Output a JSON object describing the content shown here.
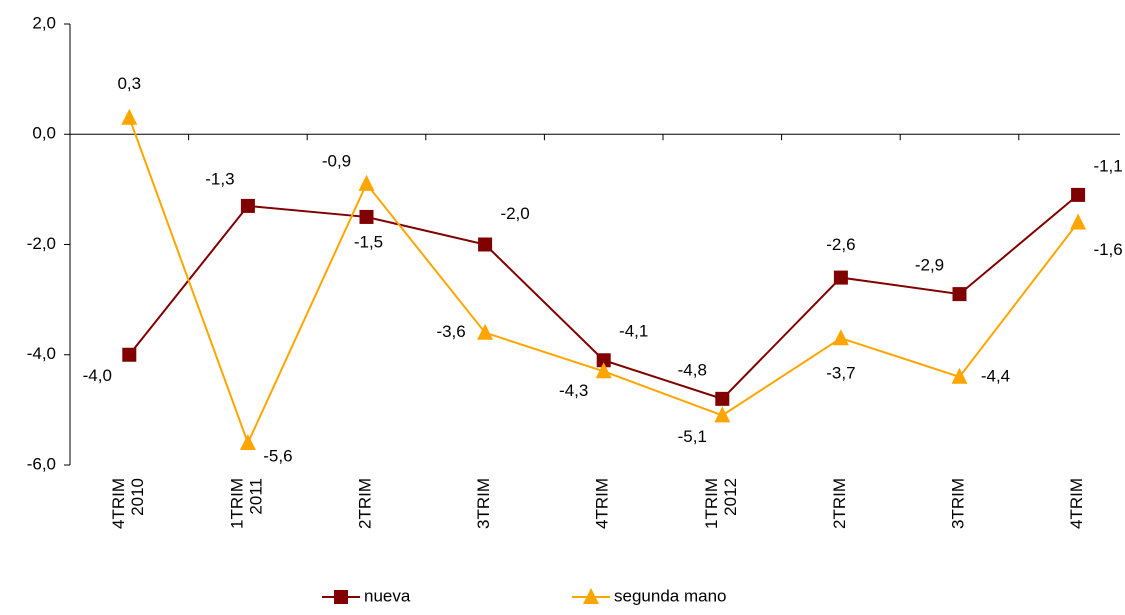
{
  "chart_data": {
    "type": "line",
    "categories": [
      "4TRIM 2010",
      "1TRIM 2011",
      "2TRIM",
      "3TRIM",
      "4TRIM",
      "1TRIM 2012",
      "2TRIM",
      "3TRIM",
      "4TRIM"
    ],
    "series": [
      {
        "name": "nueva",
        "color": "#800000",
        "marker": "square",
        "values": [
          -4.0,
          -1.3,
          -1.5,
          -2.0,
          -4.1,
          -4.8,
          -2.6,
          -2.9,
          -1.1
        ],
        "value_labels": [
          "-4,0",
          "-1,3",
          "-1,5",
          "-2,0",
          "-4,1",
          "-4,8",
          "-2,6",
          "-2,9",
          "-1,1"
        ]
      },
      {
        "name": "segunda mano",
        "color": "#FFA500",
        "marker": "triangle",
        "values": [
          0.3,
          -5.6,
          -0.9,
          -3.6,
          -4.3,
          -5.1,
          -3.7,
          -4.4,
          -1.6
        ],
        "value_labels": [
          "0,3",
          "-5,6",
          "-0,9",
          "-3,6",
          "-4,3",
          "-5,1",
          "-3,7",
          "-4,4",
          "-1,6"
        ]
      }
    ],
    "ylim": [
      -6,
      2
    ],
    "yticks": [
      {
        "value": -6,
        "label": "-6,0"
      },
      {
        "value": -4,
        "label": "-4,0"
      },
      {
        "value": -2,
        "label": "-2,0"
      },
      {
        "value": 0,
        "label": "0,0"
      },
      {
        "value": 2,
        "label": "2,0"
      }
    ],
    "grid": false,
    "legend": "bottom"
  }
}
